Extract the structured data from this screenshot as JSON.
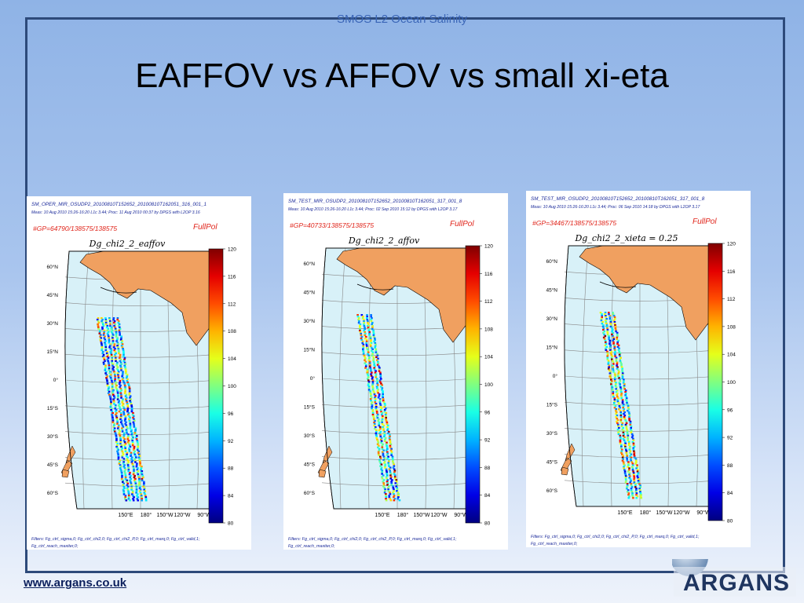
{
  "header": "SMOS L2 Ocean Salinity",
  "title": "EAFFOV vs AFFOV vs small xi-eta",
  "footer_url": "www.argans.co.uk",
  "logo_text": "ARGANS",
  "colors": {
    "title": "#000000",
    "header": "#3c67b8",
    "frame": "#2d4a7a",
    "land": "#f0a060",
    "ocean": "#d8f1f8"
  },
  "colorbar_ticks": [
    "120",
    "116",
    "112",
    "108",
    "104",
    "100",
    "96",
    "92",
    "88",
    "84",
    "80"
  ],
  "lat_labels": [
    "60°N",
    "45°N",
    "30°N",
    "15°N",
    "0°",
    "15°S",
    "30°S",
    "45°S",
    "60°S"
  ],
  "lon_labels": [
    "150°E",
    "180°",
    "150°W",
    "120°W",
    "90°W"
  ],
  "panels": [
    {
      "file": "SM_OPER_MIR_OSUDP2_20100810T152652_20100810T162051_316_001_1",
      "meas": "Meas: 10 Aug 2010 15:26-16:20 L1c 3.44; Proc: 11 Aug 2010 00:37 by DPGS with L2OP 3.16",
      "gp": "#GP=64790/138575/138575",
      "pol": "FullPol",
      "map_title": "Dg_chi2_2_eaffov",
      "filters": "Filters: Fg_ctrl_sigma,0; Fg_ctrl_chi2,0; Fg_ctrl_chi2_P,0; Fg_ctrl_marq,0; Fg_ctrl_valid,1;",
      "filters2": "Fg_ctrl_reach_maxiter,0;"
    },
    {
      "file": "SM_TEST_MIR_OSUDP2_20100810T152652_20100810T162051_317_001_8",
      "meas": "Meas: 10 Aug 2010 15:26-16:20 L1c 3.44; Proc: 02 Sep 2010 15:12 by DPGS with L2OP 3.17",
      "gp": "#GP=40733/138575/138575",
      "pol": "FullPol",
      "map_title": "Dg_chi2_2_affov",
      "filters": "Filters: Fg_ctrl_sigma,0; Fg_ctrl_chi2,0; Fg_ctrl_chi2_P,0; Fg_ctrl_marq,0; Fg_ctrl_valid,1;",
      "filters2": "Fg_ctrl_reach_maxiter,0;"
    },
    {
      "file": "SM_TEST_MIR_OSUDP2_20100810T152652_20100810T162051_317_001_8",
      "meas": "Meas: 10 Aug 2010 15:26-16:20 L1c 3.44; Proc: 06 Sep 2010 14:18 by DPGS with L2OP 3.17",
      "gp": "#GP=34467/138575/138575",
      "pol": "FullPol",
      "map_title": "Dg_chi2_2_xieta = 0.25",
      "filters": "Filters: Fg_ctrl_sigma,0; Fg_ctrl_chi2,0; Fg_ctrl_chi2_P,0; Fg_ctrl_marq,0; Fg_ctrl_valid,1;",
      "filters2": "Fg_ctrl_reach_maxiter,0;"
    }
  ]
}
